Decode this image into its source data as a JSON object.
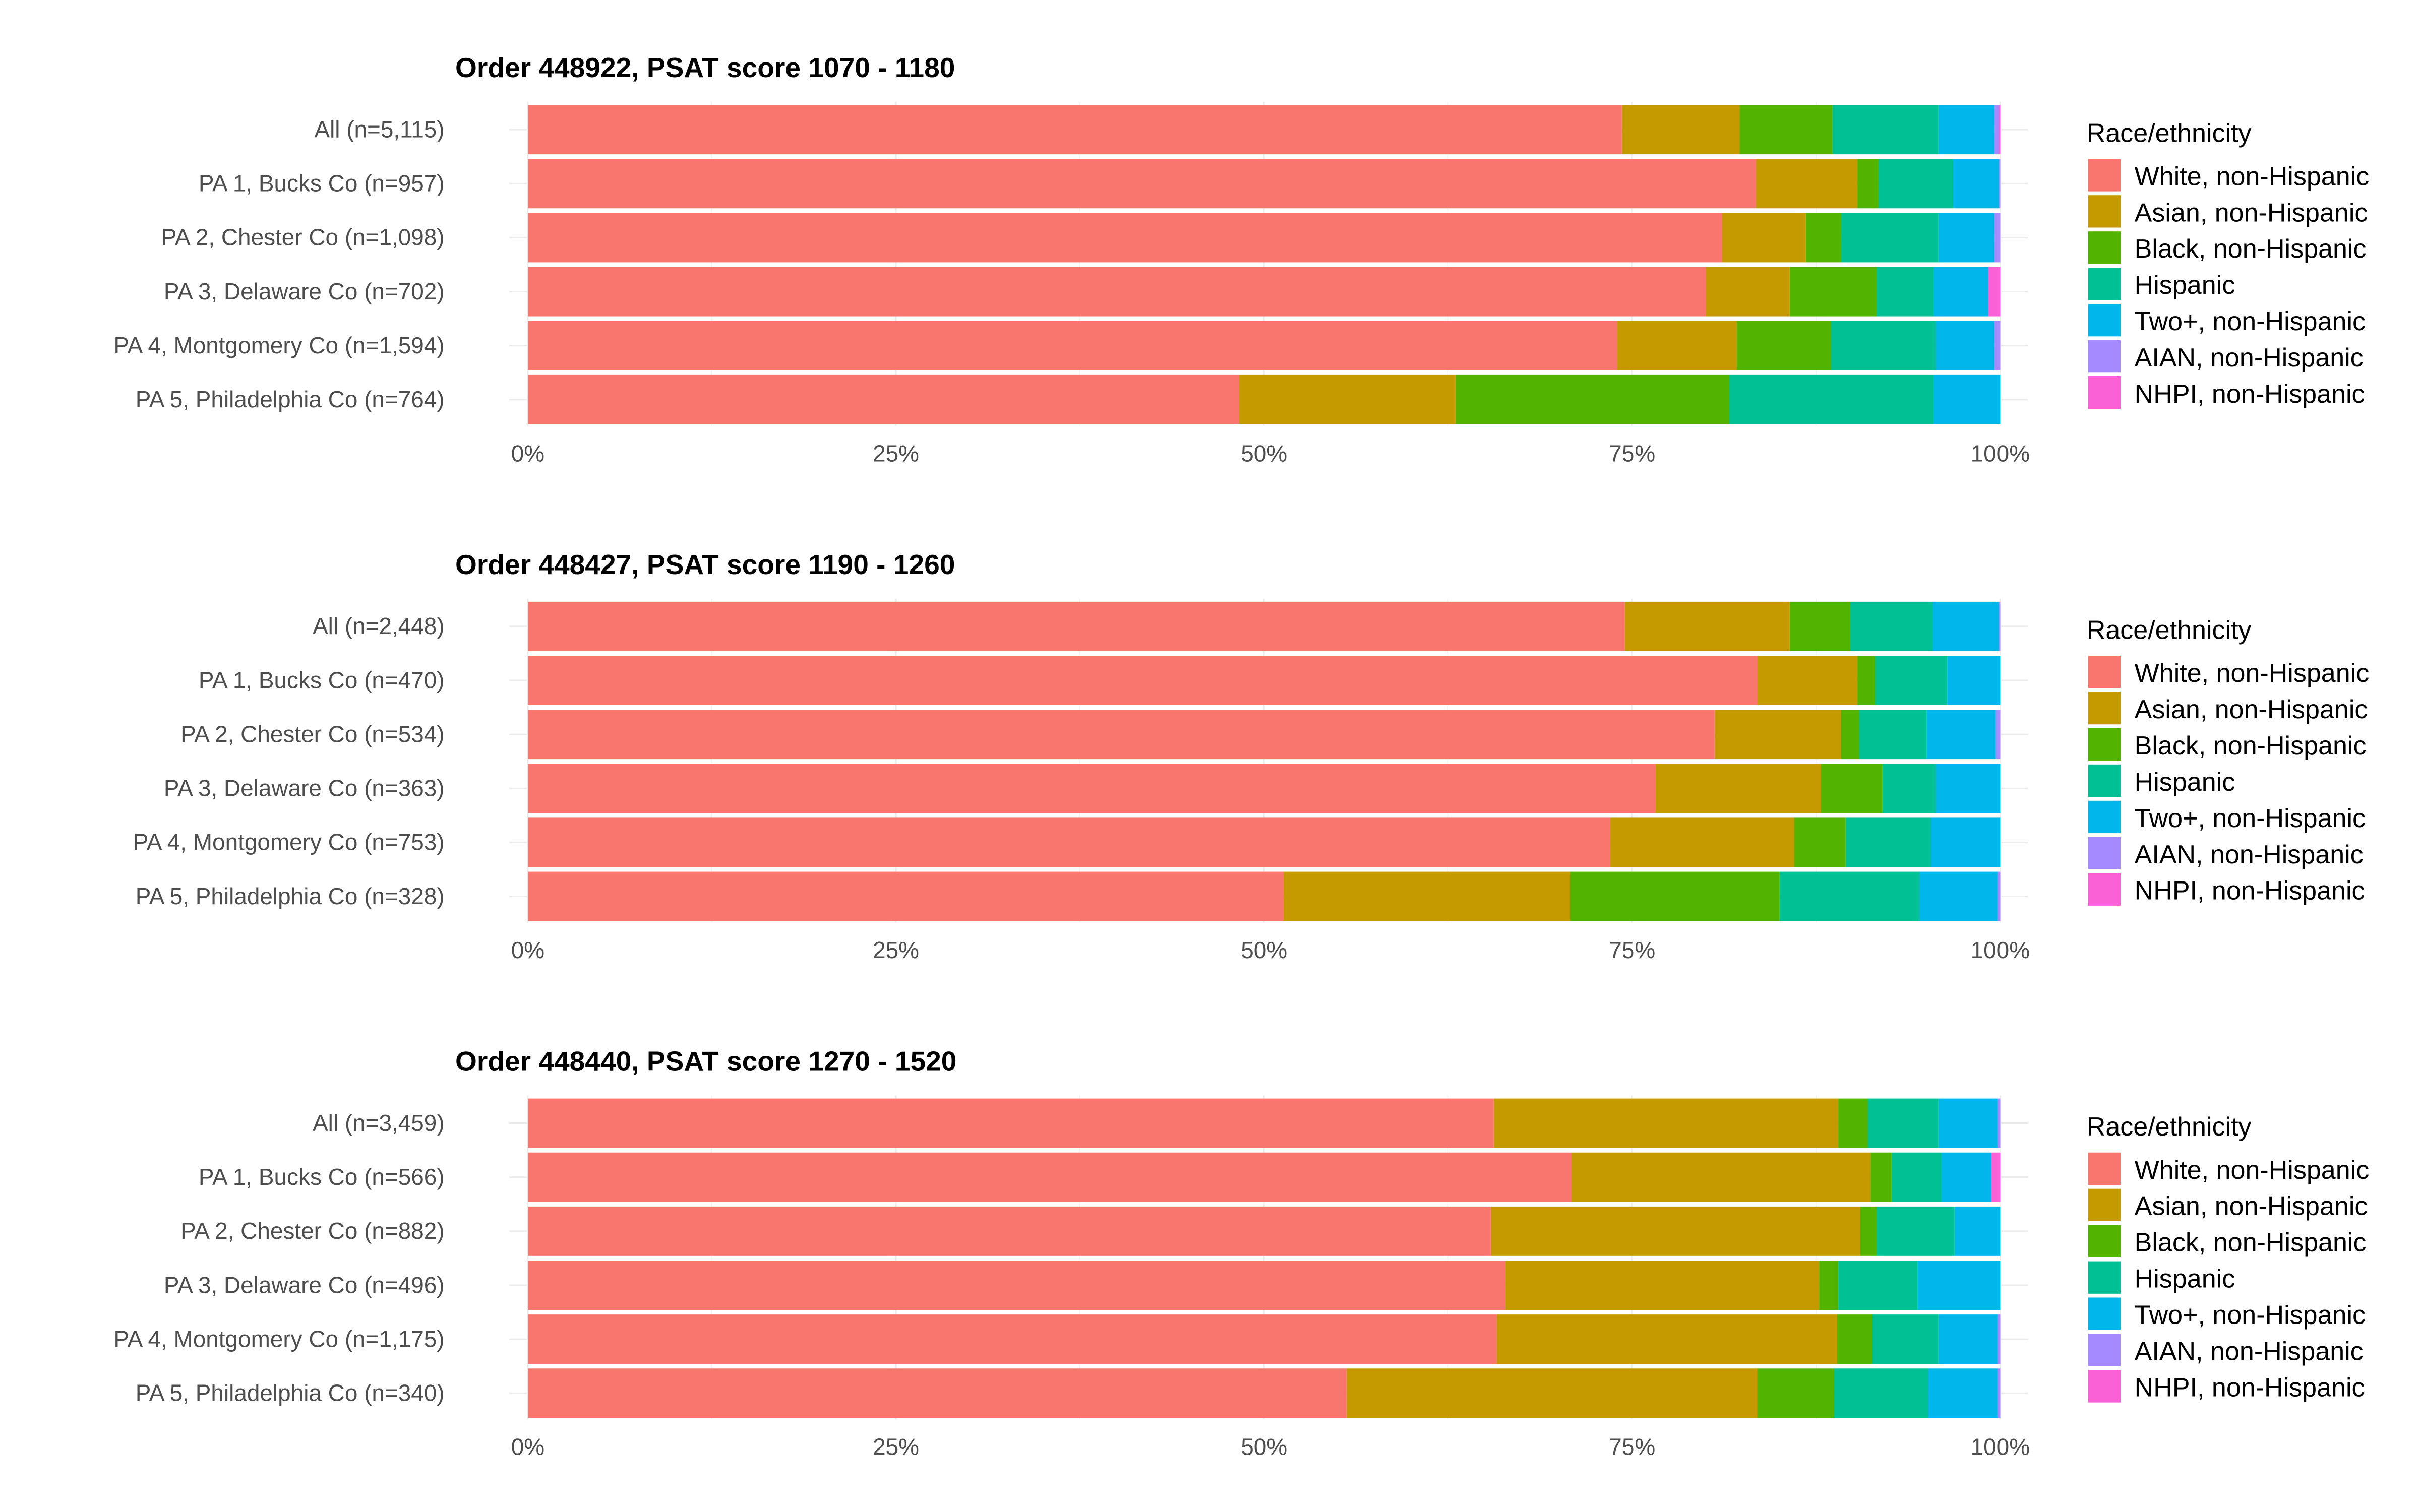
{
  "chart_data": [
    {
      "type": "bar",
      "orientation": "horizontal",
      "stacked": true,
      "title": "Order 448922, PSAT score 1070 - 1180",
      "categories": [
        "All (n=5,115)",
        "PA 1, Bucks Co (n=957)",
        "PA 2, Chester Co (n=1,098)",
        "PA 3, Delaware Co (n=702)",
        "PA 4, Montgomery Co (n=1,594)",
        "PA 5, Philadelphia Co (n=764)"
      ],
      "series": [
        {
          "name": "White, non-Hispanic",
          "values": [
            74.3,
            83.4,
            81.1,
            80.0,
            74.0,
            48.3
          ]
        },
        {
          "name": "Asian, non-Hispanic",
          "values": [
            8.0,
            6.9,
            5.7,
            5.7,
            8.1,
            14.7
          ]
        },
        {
          "name": "Black, non-Hispanic",
          "values": [
            6.3,
            1.4,
            2.4,
            5.9,
            6.4,
            18.6
          ]
        },
        {
          "name": "Hispanic",
          "values": [
            7.2,
            5.1,
            6.6,
            3.9,
            7.1,
            13.9
          ]
        },
        {
          "name": "Two+, non-Hispanic",
          "values": [
            3.8,
            3.1,
            3.8,
            3.7,
            4.0,
            4.5
          ]
        },
        {
          "name": "AIAN, non-Hispanic",
          "values": [
            0.3,
            0.1,
            0.4,
            0.0,
            0.4,
            0.0
          ]
        },
        {
          "name": "NHPI, non-Hispanic",
          "values": [
            0.1,
            0.0,
            0.0,
            0.8,
            0.0,
            0.0
          ]
        }
      ],
      "xticks": [
        "0%",
        "25%",
        "50%",
        "75%",
        "100%"
      ],
      "xlim": [
        0,
        100
      ],
      "legend_title": "Race/ethnicity",
      "legend_position": "right"
    },
    {
      "type": "bar",
      "orientation": "horizontal",
      "stacked": true,
      "title": "Order 448427, PSAT score 1190 - 1260",
      "categories": [
        "All (n=2,448)",
        "PA 1, Bucks Co (n=470)",
        "PA 2, Chester Co (n=534)",
        "PA 3, Delaware Co (n=363)",
        "PA 4, Montgomery Co (n=753)",
        "PA 5, Philadelphia Co (n=328)"
      ],
      "series": [
        {
          "name": "White, non-Hispanic",
          "values": [
            74.5,
            83.5,
            80.6,
            76.6,
            73.5,
            51.3
          ]
        },
        {
          "name": "Asian, non-Hispanic",
          "values": [
            11.2,
            6.8,
            8.6,
            11.2,
            12.5,
            19.5
          ]
        },
        {
          "name": "Black, non-Hispanic",
          "values": [
            4.1,
            1.2,
            1.2,
            4.2,
            3.5,
            14.2
          ]
        },
        {
          "name": "Hispanic",
          "values": [
            5.6,
            4.9,
            4.6,
            3.6,
            5.8,
            9.5
          ]
        },
        {
          "name": "Two+, non-Hispanic",
          "values": [
            4.5,
            3.6,
            4.7,
            4.4,
            4.7,
            5.3
          ]
        },
        {
          "name": "AIAN, non-Hispanic",
          "values": [
            0.1,
            0.0,
            0.3,
            0.0,
            0.0,
            0.2
          ]
        },
        {
          "name": "NHPI, non-Hispanic",
          "values": [
            0.0,
            0.0,
            0.0,
            0.0,
            0.0,
            0.0
          ]
        }
      ],
      "xticks": [
        "0%",
        "25%",
        "50%",
        "75%",
        "100%"
      ],
      "xlim": [
        0,
        100
      ],
      "legend_title": "Race/ethnicity",
      "legend_position": "right"
    },
    {
      "type": "bar",
      "orientation": "horizontal",
      "stacked": true,
      "title": "Order 448440, PSAT score 1270 - 1520",
      "categories": [
        "All (n=3,459)",
        "PA 1, Bucks Co (n=566)",
        "PA 2, Chester Co (n=882)",
        "PA 3, Delaware Co (n=496)",
        "PA 4, Montgomery Co (n=1,175)",
        "PA 5, Philadelphia Co (n=340)"
      ],
      "series": [
        {
          "name": "White, non-Hispanic",
          "values": [
            65.6,
            70.9,
            65.4,
            66.4,
            65.8,
            55.6
          ]
        },
        {
          "name": "Asian, non-Hispanic",
          "values": [
            23.4,
            20.3,
            25.1,
            21.3,
            23.1,
            27.9
          ]
        },
        {
          "name": "Black, non-Hispanic",
          "values": [
            2.0,
            1.4,
            1.1,
            1.3,
            2.4,
            5.2
          ]
        },
        {
          "name": "Hispanic",
          "values": [
            4.8,
            3.4,
            5.3,
            5.4,
            4.5,
            6.4
          ]
        },
        {
          "name": "Two+, non-Hispanic",
          "values": [
            4.0,
            3.4,
            3.1,
            5.6,
            4.0,
            4.7
          ]
        },
        {
          "name": "AIAN, non-Hispanic",
          "values": [
            0.2,
            0.0,
            0.0,
            0.0,
            0.2,
            0.2
          ]
        },
        {
          "name": "NHPI, non-Hispanic",
          "values": [
            0.0,
            0.6,
            0.0,
            0.0,
            0.0,
            0.0
          ]
        }
      ],
      "xticks": [
        "0%",
        "25%",
        "50%",
        "75%",
        "100%"
      ],
      "xlim": [
        0,
        100
      ],
      "legend_title": "Race/ethnicity",
      "legend_position": "right"
    }
  ],
  "colors": [
    "#F8766D",
    "#C49A00",
    "#53B400",
    "#00C094",
    "#00B6EB",
    "#A58AFF",
    "#FB61D7"
  ]
}
